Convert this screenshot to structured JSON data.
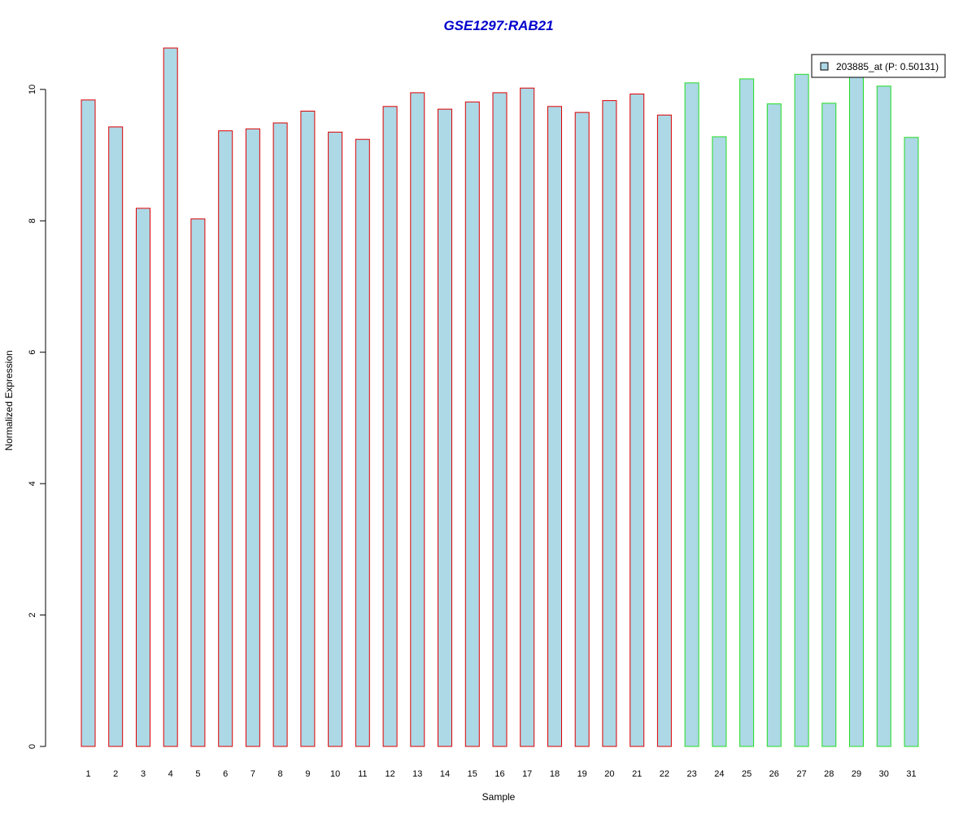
{
  "chart_data": {
    "type": "bar",
    "title": "GSE1297:RAB21",
    "xlabel": "Sample",
    "ylabel": "Normalized Expression",
    "categories": [
      "1",
      "2",
      "3",
      "4",
      "5",
      "6",
      "7",
      "8",
      "9",
      "10",
      "11",
      "12",
      "13",
      "14",
      "15",
      "16",
      "17",
      "18",
      "19",
      "20",
      "21",
      "22",
      "23",
      "24",
      "25",
      "26",
      "27",
      "28",
      "29",
      "30",
      "31"
    ],
    "series": [
      {
        "name": "203885_at (P: 0.50131)",
        "values": [
          9.84,
          9.43,
          8.19,
          10.63,
          8.03,
          9.37,
          9.4,
          9.49,
          9.67,
          9.35,
          9.24,
          9.74,
          9.95,
          9.7,
          9.81,
          9.95,
          10.02,
          9.74,
          9.65,
          9.83,
          9.93,
          9.61,
          10.1,
          9.28,
          10.16,
          9.78,
          10.23,
          9.79,
          10.25,
          10.05,
          9.27
        ]
      }
    ],
    "group_border_colors": [
      "#dd0000",
      "#dd0000",
      "#dd0000",
      "#dd0000",
      "#dd0000",
      "#dd0000",
      "#dd0000",
      "#dd0000",
      "#dd0000",
      "#dd0000",
      "#dd0000",
      "#dd0000",
      "#dd0000",
      "#dd0000",
      "#dd0000",
      "#dd0000",
      "#dd0000",
      "#dd0000",
      "#dd0000",
      "#dd0000",
      "#dd0000",
      "#dd0000",
      "#22dd22",
      "#22dd22",
      "#22dd22",
      "#22dd22",
      "#22dd22",
      "#22dd22",
      "#22dd22",
      "#22dd22",
      "#22dd22"
    ],
    "bar_fill_color": "#add8e6",
    "title_color": "#0000cc",
    "ylim": [
      0,
      10.63
    ],
    "yticks": [
      0,
      2,
      4,
      6,
      8,
      10
    ],
    "legend_position": "top-right",
    "grid": false
  }
}
